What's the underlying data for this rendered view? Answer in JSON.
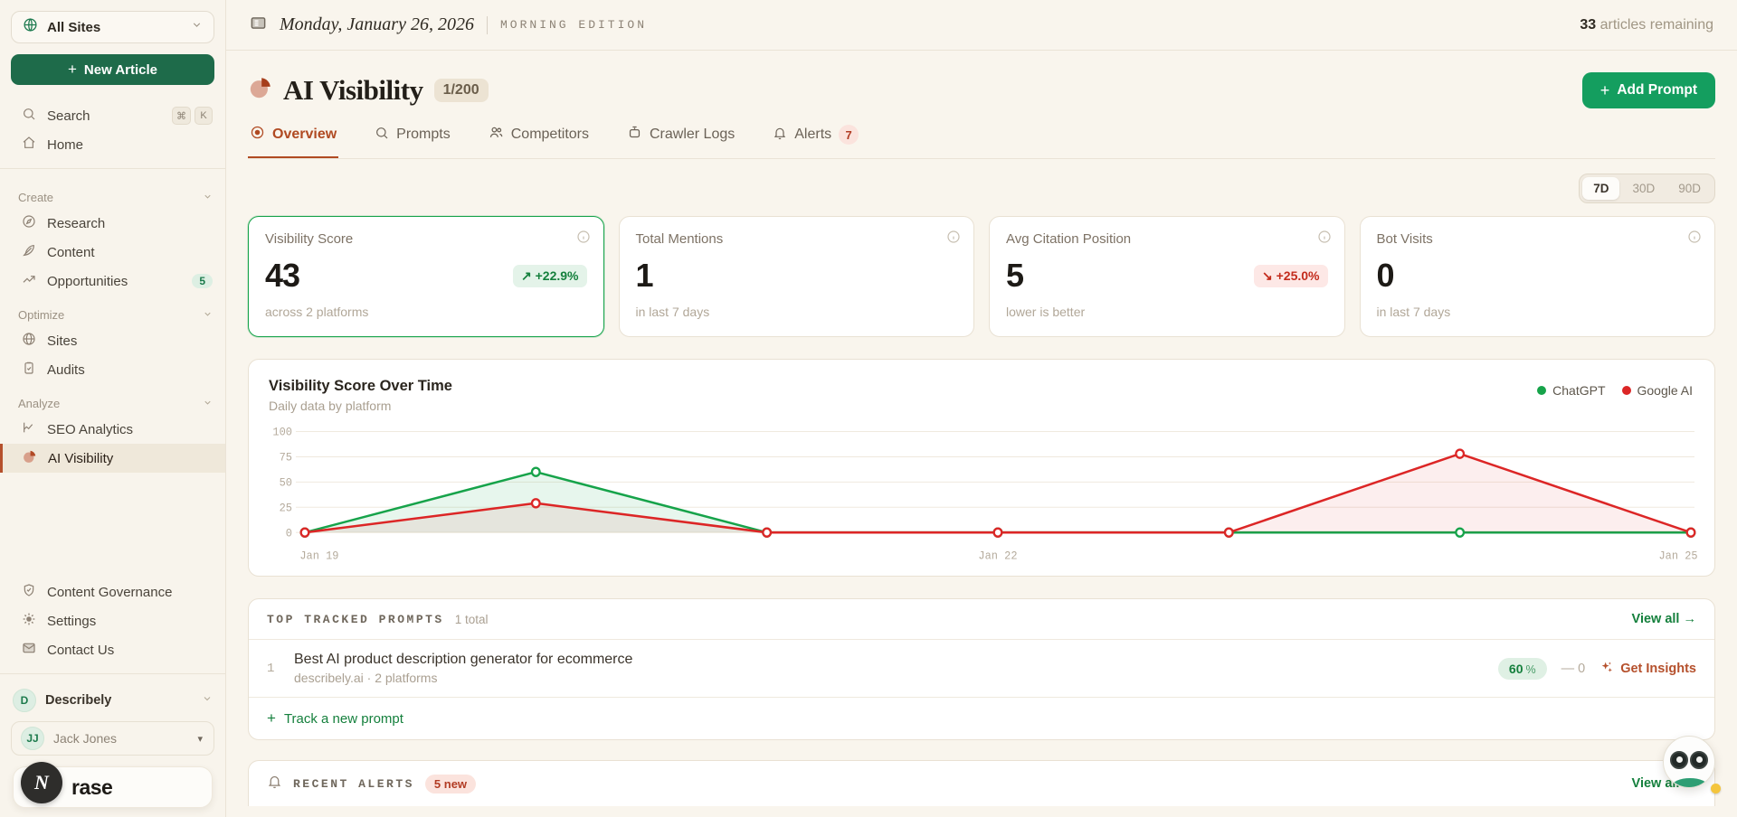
{
  "topbar": {
    "date": "Monday, January 26, 2026",
    "edition": "MORNING EDITION",
    "articles_count": "33",
    "articles_label": " articles remaining"
  },
  "sidebar": {
    "site_selector": "All Sites",
    "new_article": "New Article",
    "search": "Search",
    "search_kbd_1": "⌘",
    "search_kbd_2": "K",
    "home": "Home",
    "create_label": "Create",
    "research": "Research",
    "content": "Content",
    "opportunities": "Opportunities",
    "opportunities_badge": "5",
    "optimize_label": "Optimize",
    "sites": "Sites",
    "audits": "Audits",
    "analyze_label": "Analyze",
    "seo_analytics": "SEO Analytics",
    "ai_visibility": "AI Visibility",
    "content_governance": "Content Governance",
    "settings": "Settings",
    "contact_us": "Contact Us",
    "workspace_initial": "D",
    "workspace_name": "Describely",
    "user_initials": "JJ",
    "user_name": "Jack Jones",
    "brand_initial": "N",
    "brand_text": "rase"
  },
  "header": {
    "title": "AI Visibility",
    "quota_badge": "1/200",
    "add_prompt": "Add Prompt"
  },
  "tabs": [
    {
      "label": "Overview"
    },
    {
      "label": "Prompts"
    },
    {
      "label": "Competitors"
    },
    {
      "label": "Crawler Logs"
    },
    {
      "label": "Alerts",
      "badge": "7"
    }
  ],
  "time_range": {
    "d7": "7D",
    "d30": "30D",
    "d90": "90D"
  },
  "stats": [
    {
      "label": "Visibility Score",
      "value": "43",
      "delta_arrow": "↗",
      "delta": "+22.9%",
      "sub": "across 2 platforms"
    },
    {
      "label": "Total Mentions",
      "value": "1",
      "sub": "in last 7 days"
    },
    {
      "label": "Avg Citation Position",
      "value": "5",
      "delta_arrow": "↘",
      "delta": "+25.0%",
      "sub": "lower is better"
    },
    {
      "label": "Bot Visits",
      "value": "0",
      "sub": "in last 7 days"
    }
  ],
  "chart_data": {
    "type": "line",
    "title": "Visibility Score Over Time",
    "subtitle": "Daily data by platform",
    "x": [
      "Jan 19",
      "Jan 20",
      "Jan 21",
      "Jan 22",
      "Jan 23",
      "Jan 24",
      "Jan 25"
    ],
    "x_tick_labels": [
      "Jan 19",
      "Jan 22",
      "Jan 25"
    ],
    "ylim": [
      0,
      100
    ],
    "yticks": [
      0,
      25,
      50,
      75,
      100
    ],
    "grid": true,
    "legend_position": "top-right",
    "series": [
      {
        "name": "ChatGPT",
        "color": "#16a34a",
        "fill": "rgba(22,163,74,0.10)",
        "values": [
          0,
          60,
          0,
          0,
          0,
          0,
          0
        ]
      },
      {
        "name": "Google AI",
        "color": "#dc2626",
        "fill": "rgba(220,38,38,0.08)",
        "values": [
          0,
          29,
          0,
          0,
          0,
          78,
          0
        ]
      }
    ]
  },
  "prompts": {
    "header": "TOP TRACKED PROMPTS",
    "total": "1 total",
    "view_all": "View all →",
    "rows": [
      {
        "rank": "1",
        "title": "Best AI product description generator for ecommerce",
        "meta": "describely.ai · 2 platforms",
        "score": "60",
        "score_unit": "%",
        "mentions": "— 0",
        "action": "Get Insights"
      }
    ],
    "track_new": "Track a new prompt"
  },
  "alerts": {
    "header": "RECENT ALERTS",
    "badge": "5 new",
    "view_all": "View all →"
  }
}
